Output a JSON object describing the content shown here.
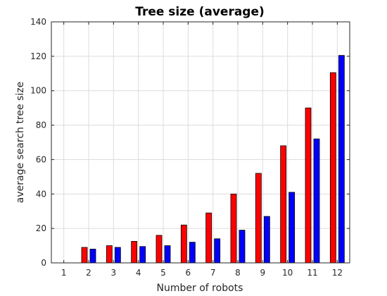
{
  "chart_data": {
    "type": "bar",
    "title": "Tree size (average)",
    "xlabel": "Number of robots",
    "ylabel": "average search tree size",
    "categories": [
      "1",
      "2",
      "3",
      "4",
      "5",
      "6",
      "7",
      "8",
      "9",
      "10",
      "11",
      "12"
    ],
    "ylim": [
      0,
      140
    ],
    "yticks": [
      0,
      20,
      40,
      60,
      80,
      100,
      120,
      140
    ],
    "grid": true,
    "series": [
      {
        "color": "#ff0000",
        "values": [
          0,
          9,
          10,
          12.5,
          16,
          22,
          29,
          40,
          52,
          68,
          90,
          110.5
        ]
      },
      {
        "color": "#0000ff",
        "values": [
          0,
          8,
          9,
          9.5,
          10,
          12,
          14,
          19,
          27,
          41,
          72,
          120.5
        ]
      }
    ]
  }
}
